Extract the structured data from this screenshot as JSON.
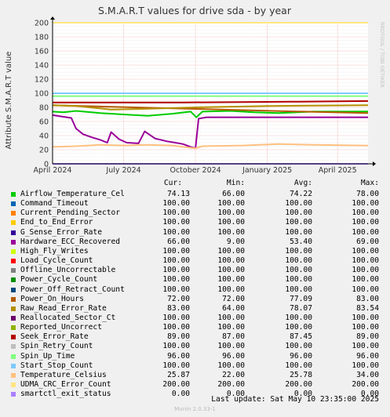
{
  "chart_data": {
    "type": "line",
    "title": "S.M.A.R.T values for drive sda - by year",
    "ylabel": "Attribute S.M.A.R.T value",
    "watermark": "RRDTOOL / TOBI OETIKER",
    "ylim": [
      0,
      200
    ],
    "yticks": [
      0,
      20,
      40,
      60,
      80,
      100,
      120,
      140,
      160,
      180,
      200
    ],
    "xlim": [
      "2024-04-01",
      "2025-05-10"
    ],
    "xticks": [
      {
        "date": "2024-04-01",
        "label": "April 2024"
      },
      {
        "date": "2024-07-01",
        "label": "July 2024"
      },
      {
        "date": "2024-10-01",
        "label": "October 2024"
      },
      {
        "date": "2025-01-01",
        "label": "January 2025"
      },
      {
        "date": "2025-04-01",
        "label": "April 2025"
      }
    ],
    "grid": true,
    "background": "#ffffff",
    "series": [
      {
        "name": "Airflow_Temperature_Cel",
        "color": "#00cc00",
        "points": [
          [
            "2024-04-01",
            74
          ],
          [
            "2024-04-15",
            73
          ],
          [
            "2024-05-01",
            75
          ],
          [
            "2024-06-01",
            72
          ],
          [
            "2024-07-01",
            70
          ],
          [
            "2024-08-01",
            68
          ],
          [
            "2024-09-01",
            71
          ],
          [
            "2024-09-25",
            74
          ],
          [
            "2024-10-02",
            66
          ],
          [
            "2024-10-10",
            74
          ],
          [
            "2024-11-15",
            75
          ],
          [
            "2024-12-15",
            73
          ],
          [
            "2025-01-15",
            72
          ],
          [
            "2025-03-01",
            74
          ],
          [
            "2025-05-10",
            74.13
          ]
        ]
      },
      {
        "name": "Command_Timeout",
        "color": "#0066b3",
        "points": [
          [
            "2024-04-01",
            100
          ],
          [
            "2025-05-10",
            100
          ]
        ]
      },
      {
        "name": "Current_Pending_Sector",
        "color": "#ff8000",
        "points": [
          [
            "2024-04-01",
            100
          ],
          [
            "2025-05-10",
            100
          ]
        ]
      },
      {
        "name": "End_to_End_Error",
        "color": "#ffcc00",
        "points": [
          [
            "2024-04-01",
            100
          ],
          [
            "2025-05-10",
            100
          ]
        ]
      },
      {
        "name": "G_Sense_Error_Rate",
        "color": "#330099",
        "points": [
          [
            "2024-04-01",
            100
          ],
          [
            "2025-05-10",
            100
          ]
        ]
      },
      {
        "name": "Hardware_ECC_Recovered",
        "color": "#990099",
        "points": [
          [
            "2024-04-01",
            69
          ],
          [
            "2024-04-25",
            65
          ],
          [
            "2024-05-01",
            50
          ],
          [
            "2024-05-10",
            42
          ],
          [
            "2024-05-20",
            38
          ],
          [
            "2024-06-01",
            34
          ],
          [
            "2024-06-10",
            30
          ],
          [
            "2024-06-15",
            45
          ],
          [
            "2024-06-25",
            35
          ],
          [
            "2024-07-05",
            30
          ],
          [
            "2024-07-20",
            29
          ],
          [
            "2024-07-28",
            46
          ],
          [
            "2024-08-10",
            36
          ],
          [
            "2024-08-25",
            32
          ],
          [
            "2024-09-05",
            30
          ],
          [
            "2024-09-15",
            28
          ],
          [
            "2024-09-25",
            24
          ],
          [
            "2024-10-01",
            22
          ],
          [
            "2024-10-05",
            64
          ],
          [
            "2024-10-15",
            66
          ],
          [
            "2025-05-10",
            66
          ]
        ]
      },
      {
        "name": "High_Fly_Writes",
        "color": "#ccff00",
        "points": [
          [
            "2024-04-01",
            100
          ],
          [
            "2025-05-10",
            100
          ]
        ]
      },
      {
        "name": "Load_Cycle_Count",
        "color": "#ff0000",
        "points": [
          [
            "2024-04-01",
            100
          ],
          [
            "2025-05-10",
            100
          ]
        ]
      },
      {
        "name": "Offline_Uncorrectable",
        "color": "#808080",
        "points": [
          [
            "2024-04-01",
            100
          ],
          [
            "2025-05-10",
            100
          ]
        ]
      },
      {
        "name": "Power_Cycle_Count",
        "color": "#008f00",
        "points": [
          [
            "2024-04-01",
            100
          ],
          [
            "2025-05-10",
            100
          ]
        ]
      },
      {
        "name": "Power_Off_Retract_Count",
        "color": "#00487d",
        "points": [
          [
            "2024-04-01",
            100
          ],
          [
            "2025-05-10",
            100
          ]
        ]
      },
      {
        "name": "Power_On_Hours",
        "color": "#b35a00",
        "points": [
          [
            "2024-04-01",
            83
          ],
          [
            "2024-07-15",
            80
          ],
          [
            "2024-11-01",
            77
          ],
          [
            "2025-02-15",
            74
          ],
          [
            "2025-05-10",
            72
          ]
        ]
      },
      {
        "name": "Raw_Read_Error_Rate",
        "color": "#b38f00",
        "points": [
          [
            "2024-04-01",
            83
          ],
          [
            "2024-05-01",
            82
          ],
          [
            "2024-06-15",
            77
          ],
          [
            "2024-08-01",
            78
          ],
          [
            "2024-10-01",
            80
          ],
          [
            "2025-01-01",
            82
          ],
          [
            "2025-05-10",
            83
          ]
        ]
      },
      {
        "name": "Reallocated_Sector_Ct",
        "color": "#6b006b",
        "points": [
          [
            "2024-04-01",
            100
          ],
          [
            "2025-05-10",
            100
          ]
        ]
      },
      {
        "name": "Reported_Uncorrect",
        "color": "#8fb300",
        "points": [
          [
            "2024-04-01",
            100
          ],
          [
            "2025-05-10",
            100
          ]
        ]
      },
      {
        "name": "Seek_Error_Rate",
        "color": "#b30000",
        "points": [
          [
            "2024-04-01",
            87
          ],
          [
            "2024-09-15",
            87
          ],
          [
            "2025-02-01",
            88
          ],
          [
            "2025-05-10",
            89
          ]
        ]
      },
      {
        "name": "Spin_Retry_Count",
        "color": "#bebebe",
        "points": [
          [
            "2024-04-01",
            100
          ],
          [
            "2025-05-10",
            100
          ]
        ]
      },
      {
        "name": "Spin_Up_Time",
        "color": "#80ff80",
        "points": [
          [
            "2024-04-01",
            96
          ],
          [
            "2025-05-10",
            96
          ]
        ]
      },
      {
        "name": "Start_Stop_Count",
        "color": "#80c9ff",
        "points": [
          [
            "2024-04-01",
            100
          ],
          [
            "2025-05-10",
            100
          ]
        ]
      },
      {
        "name": "Temperature_Celsius",
        "color": "#ffc080",
        "points": [
          [
            "2024-04-01",
            24
          ],
          [
            "2024-05-01",
            25
          ],
          [
            "2024-06-01",
            27
          ],
          [
            "2024-07-01",
            26
          ],
          [
            "2024-08-01",
            27
          ],
          [
            "2024-09-01",
            26
          ],
          [
            "2024-10-01",
            22
          ],
          [
            "2024-10-10",
            25
          ],
          [
            "2024-12-01",
            26
          ],
          [
            "2025-01-15",
            28
          ],
          [
            "2025-03-01",
            27
          ],
          [
            "2025-05-10",
            25.87
          ]
        ]
      },
      {
        "name": "UDMA_CRC_Error_Count",
        "color": "#ffe680",
        "points": [
          [
            "2024-04-01",
            200
          ],
          [
            "2025-05-10",
            200
          ]
        ]
      },
      {
        "name": "smartctl_exit_status",
        "color": "#aa80ff",
        "points": [
          [
            "2024-04-01",
            0
          ],
          [
            "2025-05-10",
            0
          ]
        ]
      }
    ]
  },
  "legend": {
    "headers": {
      "cur": "Cur:",
      "min": "Min:",
      "avg": "Avg:",
      "max": "Max:"
    },
    "rows": [
      {
        "name": "Airflow_Temperature_Cel",
        "color": "#00cc00",
        "cur": "74.13",
        "min": "66.00",
        "avg": "74.22",
        "max": "78.00"
      },
      {
        "name": "Command_Timeout",
        "color": "#0066b3",
        "cur": "100.00",
        "min": "100.00",
        "avg": "100.00",
        "max": "100.00"
      },
      {
        "name": "Current_Pending_Sector",
        "color": "#ff8000",
        "cur": "100.00",
        "min": "100.00",
        "avg": "100.00",
        "max": "100.00"
      },
      {
        "name": "End_to_End_Error",
        "color": "#ffcc00",
        "cur": "100.00",
        "min": "100.00",
        "avg": "100.00",
        "max": "100.00"
      },
      {
        "name": "G_Sense_Error_Rate",
        "color": "#330099",
        "cur": "100.00",
        "min": "100.00",
        "avg": "100.00",
        "max": "100.00"
      },
      {
        "name": "Hardware_ECC_Recovered",
        "color": "#990099",
        "cur": "66.00",
        "min": "9.00",
        "avg": "53.40",
        "max": "69.00"
      },
      {
        "name": "High_Fly_Writes",
        "color": "#ccff00",
        "cur": "100.00",
        "min": "100.00",
        "avg": "100.00",
        "max": "100.00"
      },
      {
        "name": "Load_Cycle_Count",
        "color": "#ff0000",
        "cur": "100.00",
        "min": "100.00",
        "avg": "100.00",
        "max": "100.00"
      },
      {
        "name": "Offline_Uncorrectable",
        "color": "#808080",
        "cur": "100.00",
        "min": "100.00",
        "avg": "100.00",
        "max": "100.00"
      },
      {
        "name": "Power_Cycle_Count",
        "color": "#008f00",
        "cur": "100.00",
        "min": "100.00",
        "avg": "100.00",
        "max": "100.00"
      },
      {
        "name": "Power_Off_Retract_Count",
        "color": "#00487d",
        "cur": "100.00",
        "min": "100.00",
        "avg": "100.00",
        "max": "100.00"
      },
      {
        "name": "Power_On_Hours",
        "color": "#b35a00",
        "cur": "72.00",
        "min": "72.00",
        "avg": "77.09",
        "max": "83.00"
      },
      {
        "name": "Raw_Read_Error_Rate",
        "color": "#b38f00",
        "cur": "83.00",
        "min": "64.00",
        "avg": "78.07",
        "max": "83.54"
      },
      {
        "name": "Reallocated_Sector_Ct",
        "color": "#6b006b",
        "cur": "100.00",
        "min": "100.00",
        "avg": "100.00",
        "max": "100.00"
      },
      {
        "name": "Reported_Uncorrect",
        "color": "#8fb300",
        "cur": "100.00",
        "min": "100.00",
        "avg": "100.00",
        "max": "100.00"
      },
      {
        "name": "Seek_Error_Rate",
        "color": "#b30000",
        "cur": "89.00",
        "min": "87.00",
        "avg": "87.45",
        "max": "89.00"
      },
      {
        "name": "Spin_Retry_Count",
        "color": "#bebebe",
        "cur": "100.00",
        "min": "100.00",
        "avg": "100.00",
        "max": "100.00"
      },
      {
        "name": "Spin_Up_Time",
        "color": "#80ff80",
        "cur": "96.00",
        "min": "96.00",
        "avg": "96.00",
        "max": "96.00"
      },
      {
        "name": "Start_Stop_Count",
        "color": "#80c9ff",
        "cur": "100.00",
        "min": "100.00",
        "avg": "100.00",
        "max": "100.00"
      },
      {
        "name": "Temperature_Celsius",
        "color": "#ffc080",
        "cur": "25.87",
        "min": "22.00",
        "avg": "25.78",
        "max": "34.00"
      },
      {
        "name": "UDMA_CRC_Error_Count",
        "color": "#ffe680",
        "cur": "200.00",
        "min": "200.00",
        "avg": "200.00",
        "max": "200.00"
      },
      {
        "name": "smartctl_exit_status",
        "color": "#aa80ff",
        "cur": "0.00",
        "min": "0.00",
        "avg": "0.00",
        "max": "0.00"
      }
    ]
  },
  "footer": {
    "last_update": "Last update:  Sat May 10 23:35:00 2025",
    "version": "Munin 2.0.33-1"
  }
}
